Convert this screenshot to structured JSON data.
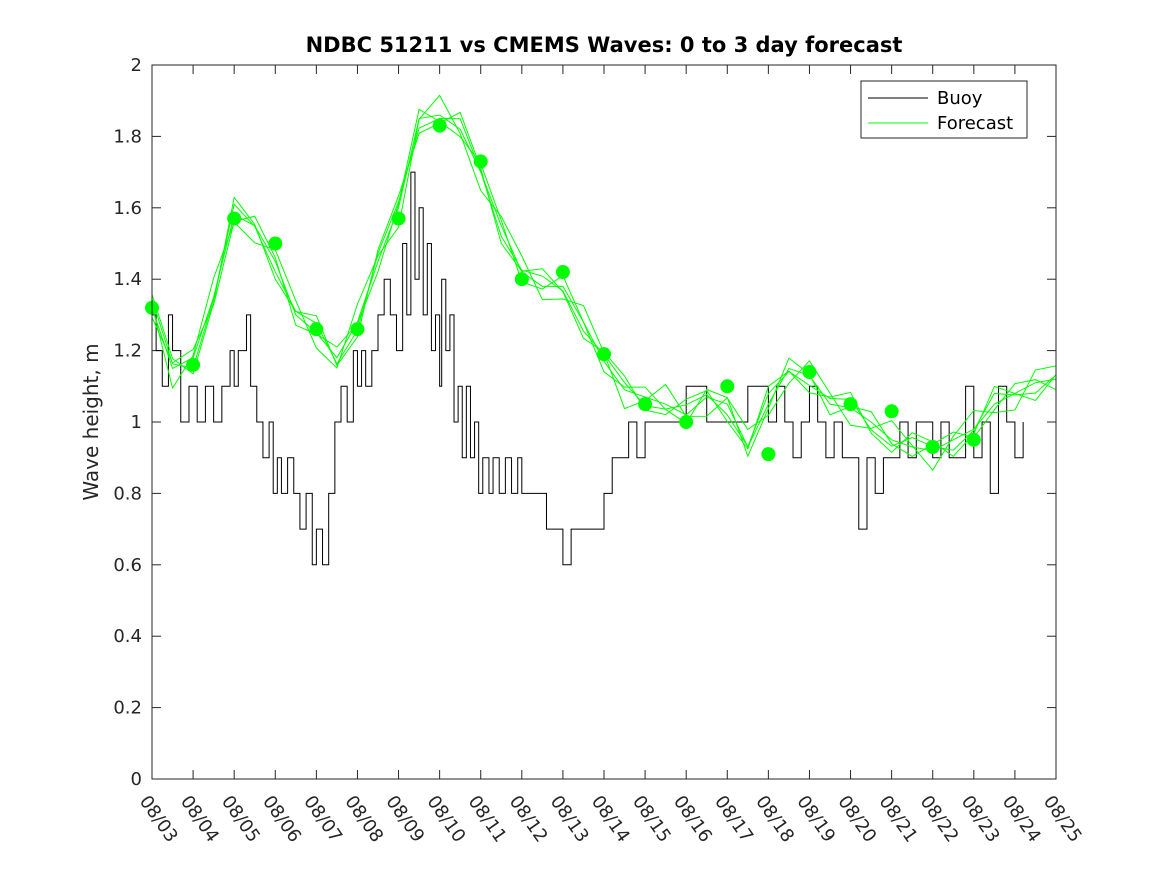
{
  "chart_data": {
    "type": "line",
    "title": "NDBC 51211 vs CMEMS Waves: 0 to 3 day forecast",
    "xlabel": "",
    "ylabel": "Wave height, m",
    "xlim": [
      0,
      22
    ],
    "ylim": [
      0,
      2
    ],
    "x_ticks": [
      "08/03",
      "08/04",
      "08/05",
      "08/06",
      "08/07",
      "08/08",
      "08/09",
      "08/10",
      "08/11",
      "08/12",
      "08/13",
      "08/14",
      "08/15",
      "08/16",
      "08/17",
      "08/18",
      "08/19",
      "08/20",
      "08/21",
      "08/22",
      "08/23",
      "08/24",
      "08/25"
    ],
    "y_ticks": [
      0,
      0.2,
      0.4,
      0.6,
      0.8,
      1,
      1.2,
      1.4,
      1.6,
      1.8,
      2
    ],
    "y_tick_labels": [
      "0",
      "0.2",
      "0.4",
      "0.6",
      "0.8",
      "1",
      "1.2",
      "1.4",
      "1.6",
      "1.8",
      "2"
    ],
    "legend": {
      "position": "top-right",
      "entries": [
        {
          "label": "Buoy",
          "color": "#000000"
        },
        {
          "label": "Forecast",
          "color": "#00ff00"
        }
      ]
    },
    "series": [
      {
        "name": "Buoy",
        "color": "#000000",
        "x": [
          0,
          0.1,
          0.25,
          0.4,
          0.5,
          0.7,
          0.9,
          1.1,
          1.3,
          1.5,
          1.7,
          1.9,
          2.0,
          2.1,
          2.3,
          2.4,
          2.55,
          2.7,
          2.85,
          2.95,
          3.05,
          3.15,
          3.3,
          3.45,
          3.6,
          3.75,
          3.9,
          4.0,
          4.15,
          4.3,
          4.45,
          4.6,
          4.75,
          4.9,
          5.0,
          5.1,
          5.2,
          5.35,
          5.5,
          5.65,
          5.8,
          5.95,
          6.1,
          6.2,
          6.3,
          6.4,
          6.5,
          6.6,
          6.7,
          6.8,
          6.9,
          7.0,
          7.05,
          7.15,
          7.25,
          7.35,
          7.45,
          7.55,
          7.65,
          7.75,
          7.85,
          7.95,
          8.05,
          8.2,
          8.3,
          8.45,
          8.6,
          8.75,
          8.9,
          9.0,
          9.2,
          9.4,
          9.6,
          9.8,
          10.0,
          10.2,
          10.4,
          10.6,
          10.8,
          11.0,
          11.2,
          11.4,
          11.6,
          11.8,
          12.0,
          12.5,
          13.0,
          13.5,
          14.0,
          14.5,
          15.0,
          15.2,
          15.4,
          15.6,
          15.8,
          16.0,
          16.2,
          16.4,
          16.6,
          16.8,
          17.0,
          17.2,
          17.4,
          17.6,
          17.8,
          18.0,
          18.2,
          18.4,
          18.6,
          18.8,
          19.0,
          19.2,
          19.4,
          19.6,
          19.8,
          20.0,
          20.2,
          20.4,
          20.6,
          20.8,
          21.0,
          21.2
        ],
        "values": [
          1.3,
          1.2,
          1.1,
          1.3,
          1.2,
          1.0,
          1.1,
          1.0,
          1.1,
          1.0,
          1.1,
          1.2,
          1.1,
          1.2,
          1.3,
          1.1,
          1.0,
          0.9,
          1.0,
          0.8,
          0.9,
          0.8,
          0.9,
          0.8,
          0.7,
          0.8,
          0.6,
          0.7,
          0.6,
          0.8,
          1.0,
          1.1,
          1.0,
          1.2,
          1.1,
          1.2,
          1.1,
          1.2,
          1.3,
          1.4,
          1.3,
          1.2,
          1.5,
          1.3,
          1.7,
          1.4,
          1.6,
          1.3,
          1.5,
          1.2,
          1.3,
          1.1,
          1.4,
          1.2,
          1.3,
          1.0,
          1.1,
          0.9,
          1.1,
          0.9,
          1.0,
          0.8,
          0.9,
          0.8,
          0.9,
          0.8,
          0.9,
          0.8,
          0.9,
          0.8,
          0.8,
          0.8,
          0.7,
          0.7,
          0.6,
          0.7,
          0.7,
          0.7,
          0.7,
          0.8,
          0.9,
          0.9,
          1.0,
          0.9,
          1.0,
          1.0,
          1.1,
          1.0,
          1.0,
          1.1,
          1.0,
          1.1,
          1.0,
          0.9,
          1.0,
          1.1,
          1.0,
          0.9,
          1.0,
          0.9,
          0.9,
          0.7,
          0.9,
          0.8,
          0.9,
          0.9,
          1.0,
          0.9,
          1.0,
          1.0,
          0.9,
          1.0,
          0.9,
          0.9,
          1.1,
          0.9,
          1.0,
          0.8,
          1.1,
          1.0,
          0.9,
          1.0
        ]
      },
      {
        "name": "Forecast",
        "color": "#00ff00",
        "x": [
          0,
          0.5,
          1.0,
          1.5,
          2.0,
          2.5,
          3.0,
          3.5,
          4.0,
          4.5,
          5.0,
          5.5,
          6.0,
          6.5,
          7.0,
          7.5,
          8.0,
          8.5,
          9.0,
          9.5,
          10.0,
          10.5,
          11.0,
          11.5,
          12.0,
          12.5,
          13.0,
          13.5,
          14.0,
          14.5,
          15.0,
          15.5,
          16.0,
          16.5,
          17.0,
          17.5,
          18.0,
          18.5,
          19.0,
          19.5,
          20.0,
          20.5,
          21.0,
          21.5,
          22.0
        ],
        "values": [
          1.32,
          1.15,
          1.18,
          1.35,
          1.58,
          1.55,
          1.45,
          1.3,
          1.25,
          1.18,
          1.28,
          1.45,
          1.6,
          1.85,
          1.86,
          1.82,
          1.7,
          1.55,
          1.42,
          1.38,
          1.38,
          1.28,
          1.17,
          1.09,
          1.07,
          1.05,
          1.02,
          1.07,
          1.05,
          0.93,
          1.05,
          1.15,
          1.13,
          1.05,
          1.04,
          1.0,
          0.95,
          0.93,
          0.92,
          0.95,
          0.98,
          1.05,
          1.08,
          1.11,
          1.12
        ]
      },
      {
        "name": "Forecast 0-day points",
        "color": "#00ff00",
        "x": [
          0,
          1,
          2,
          3,
          4,
          5,
          6,
          7,
          8,
          9,
          10,
          11,
          12,
          13,
          14,
          15,
          16,
          17,
          18,
          19,
          20
        ],
        "values": [
          1.32,
          1.16,
          1.57,
          1.5,
          1.26,
          1.26,
          1.57,
          1.83,
          1.73,
          1.4,
          1.42,
          1.19,
          1.05,
          1.0,
          1.1,
          0.91,
          1.14,
          1.05,
          1.03,
          0.93,
          0.95
        ]
      }
    ]
  }
}
